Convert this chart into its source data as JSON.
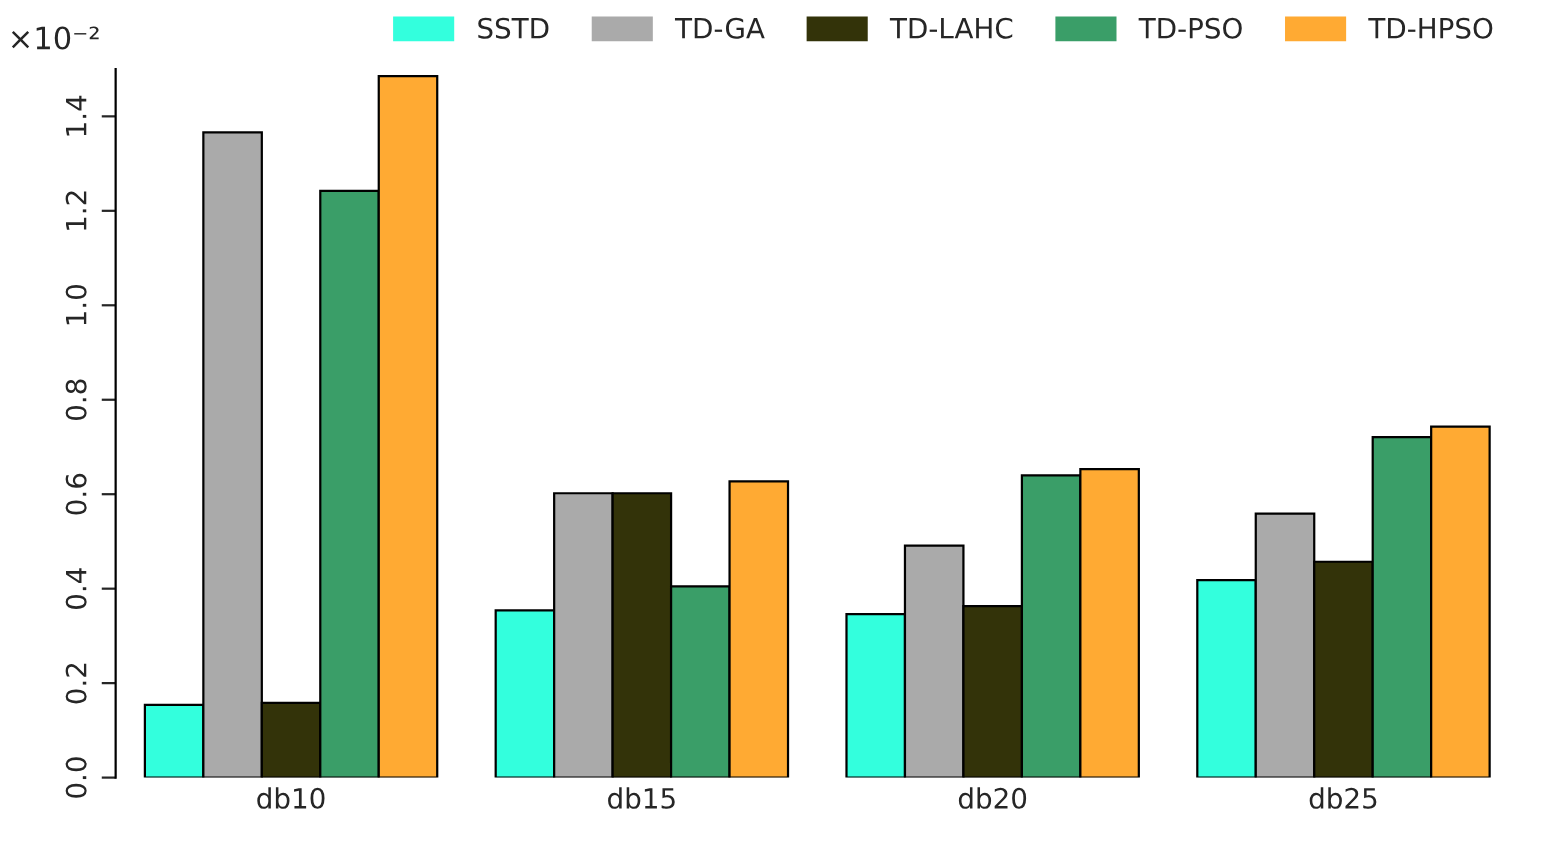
{
  "chart_data": {
    "type": "bar",
    "categories": [
      "db10",
      "db15",
      "db20",
      "db25"
    ],
    "series": [
      {
        "name": "SSTD",
        "color": "#33ffdd",
        "values": [
          0.154,
          0.354,
          0.346,
          0.418
        ]
      },
      {
        "name": "TD-GA",
        "color": "#aaaaaa",
        "values": [
          1.366,
          0.602,
          0.491,
          0.559
        ]
      },
      {
        "name": "TD-LAHC",
        "color": "#333309",
        "values": [
          0.158,
          0.602,
          0.363,
          0.457
        ]
      },
      {
        "name": "TD-PSO",
        "color": "#3a9e68",
        "values": [
          1.242,
          0.405,
          0.64,
          0.721
        ]
      },
      {
        "name": "TD-HPSO",
        "color": "#ffaa33",
        "values": [
          1.485,
          0.627,
          0.653,
          0.743
        ]
      }
    ],
    "ylim": [
      0,
      1.5
    ],
    "yticks": [
      {
        "value": 0,
        "label": "0.0"
      },
      {
        "value": 0.2,
        "label": "0.2"
      },
      {
        "value": 0.4,
        "label": "0.4"
      },
      {
        "value": 0.6,
        "label": "0.6"
      },
      {
        "value": 0.8,
        "label": "0.8"
      },
      {
        "value": 1.0,
        "label": "1.0"
      },
      {
        "value": 1.2,
        "label": "1.2"
      },
      {
        "value": 1.4,
        "label": "1.4"
      }
    ],
    "annotations": [
      "×10⁻²"
    ],
    "grid": false,
    "legend": "top right"
  }
}
